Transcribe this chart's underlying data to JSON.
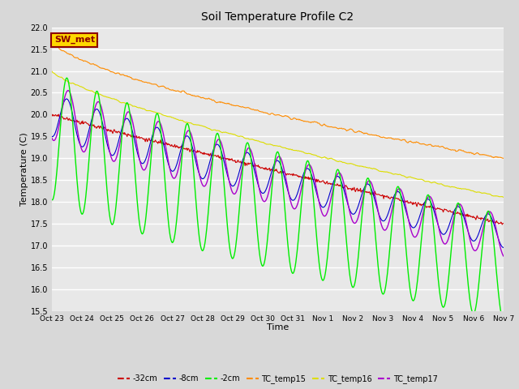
{
  "title": "Soil Temperature Profile C2",
  "xlabel": "Time",
  "ylabel": "Temperature (C)",
  "ylim": [
    15.5,
    22.0
  ],
  "yticks": [
    15.5,
    16.0,
    16.5,
    17.0,
    17.5,
    18.0,
    18.5,
    19.0,
    19.5,
    20.0,
    20.5,
    21.0,
    21.5,
    22.0
  ],
  "fig_bg_color": "#d8d8d8",
  "plot_bg_color": "#e8e8e8",
  "grid_color": "white",
  "series": {
    "TC_temp15": {
      "color": "#FF8C00",
      "linewidth": 0.8,
      "zorder": 3
    },
    "TC_temp16": {
      "color": "#DDDD00",
      "linewidth": 0.8,
      "zorder": 3
    },
    "TC_temp17": {
      "color": "#AA00CC",
      "linewidth": 1.0,
      "zorder": 4
    },
    "-2cm": {
      "color": "#00EE00",
      "linewidth": 1.0,
      "zorder": 5
    },
    "-8cm": {
      "color": "#0000CC",
      "linewidth": 0.8,
      "zorder": 2
    },
    "-32cm": {
      "color": "#CC0000",
      "linewidth": 0.8,
      "zorder": 2
    }
  },
  "x_tick_labels": [
    "Oct 23",
    "Oct 24",
    "Oct 25",
    "Oct 26",
    "Oct 27",
    "Oct 28",
    "Oct 29",
    "Oct 30",
    "Oct 31",
    "Nov 1",
    "Nov 2",
    "Nov 3",
    "Nov 4",
    "Nov 5",
    "Nov 6",
    "Nov 7"
  ],
  "annotation_text": "SW_met",
  "annotation_color": "#8B0000",
  "annotation_bg": "#FFD700",
  "annotation_border": "#8B0000",
  "legend_labels": [
    "-32cm",
    "-8cm",
    "-2cm",
    "TC_temp15",
    "TC_temp16",
    "TC_temp17"
  ],
  "legend_colors": [
    "#CC0000",
    "#0000CC",
    "#00EE00",
    "#FF8C00",
    "#DDDD00",
    "#AA00CC"
  ]
}
